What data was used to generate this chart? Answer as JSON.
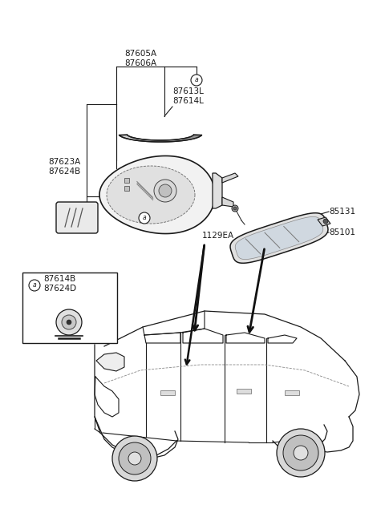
{
  "bg": "#ffffff",
  "lc": "#1a1a1a",
  "fc": "#1a1a1a",
  "fs": 7.0,
  "labels": {
    "top": "87605A\n87606A",
    "visor": "87613L\n87614L",
    "body": "87623A\n87624B",
    "bolt": "1129EA",
    "inset": "87614B\n87624D",
    "clip": "85131",
    "rm": "85101"
  },
  "figsize": [
    4.8,
    6.55
  ],
  "dpi": 100
}
